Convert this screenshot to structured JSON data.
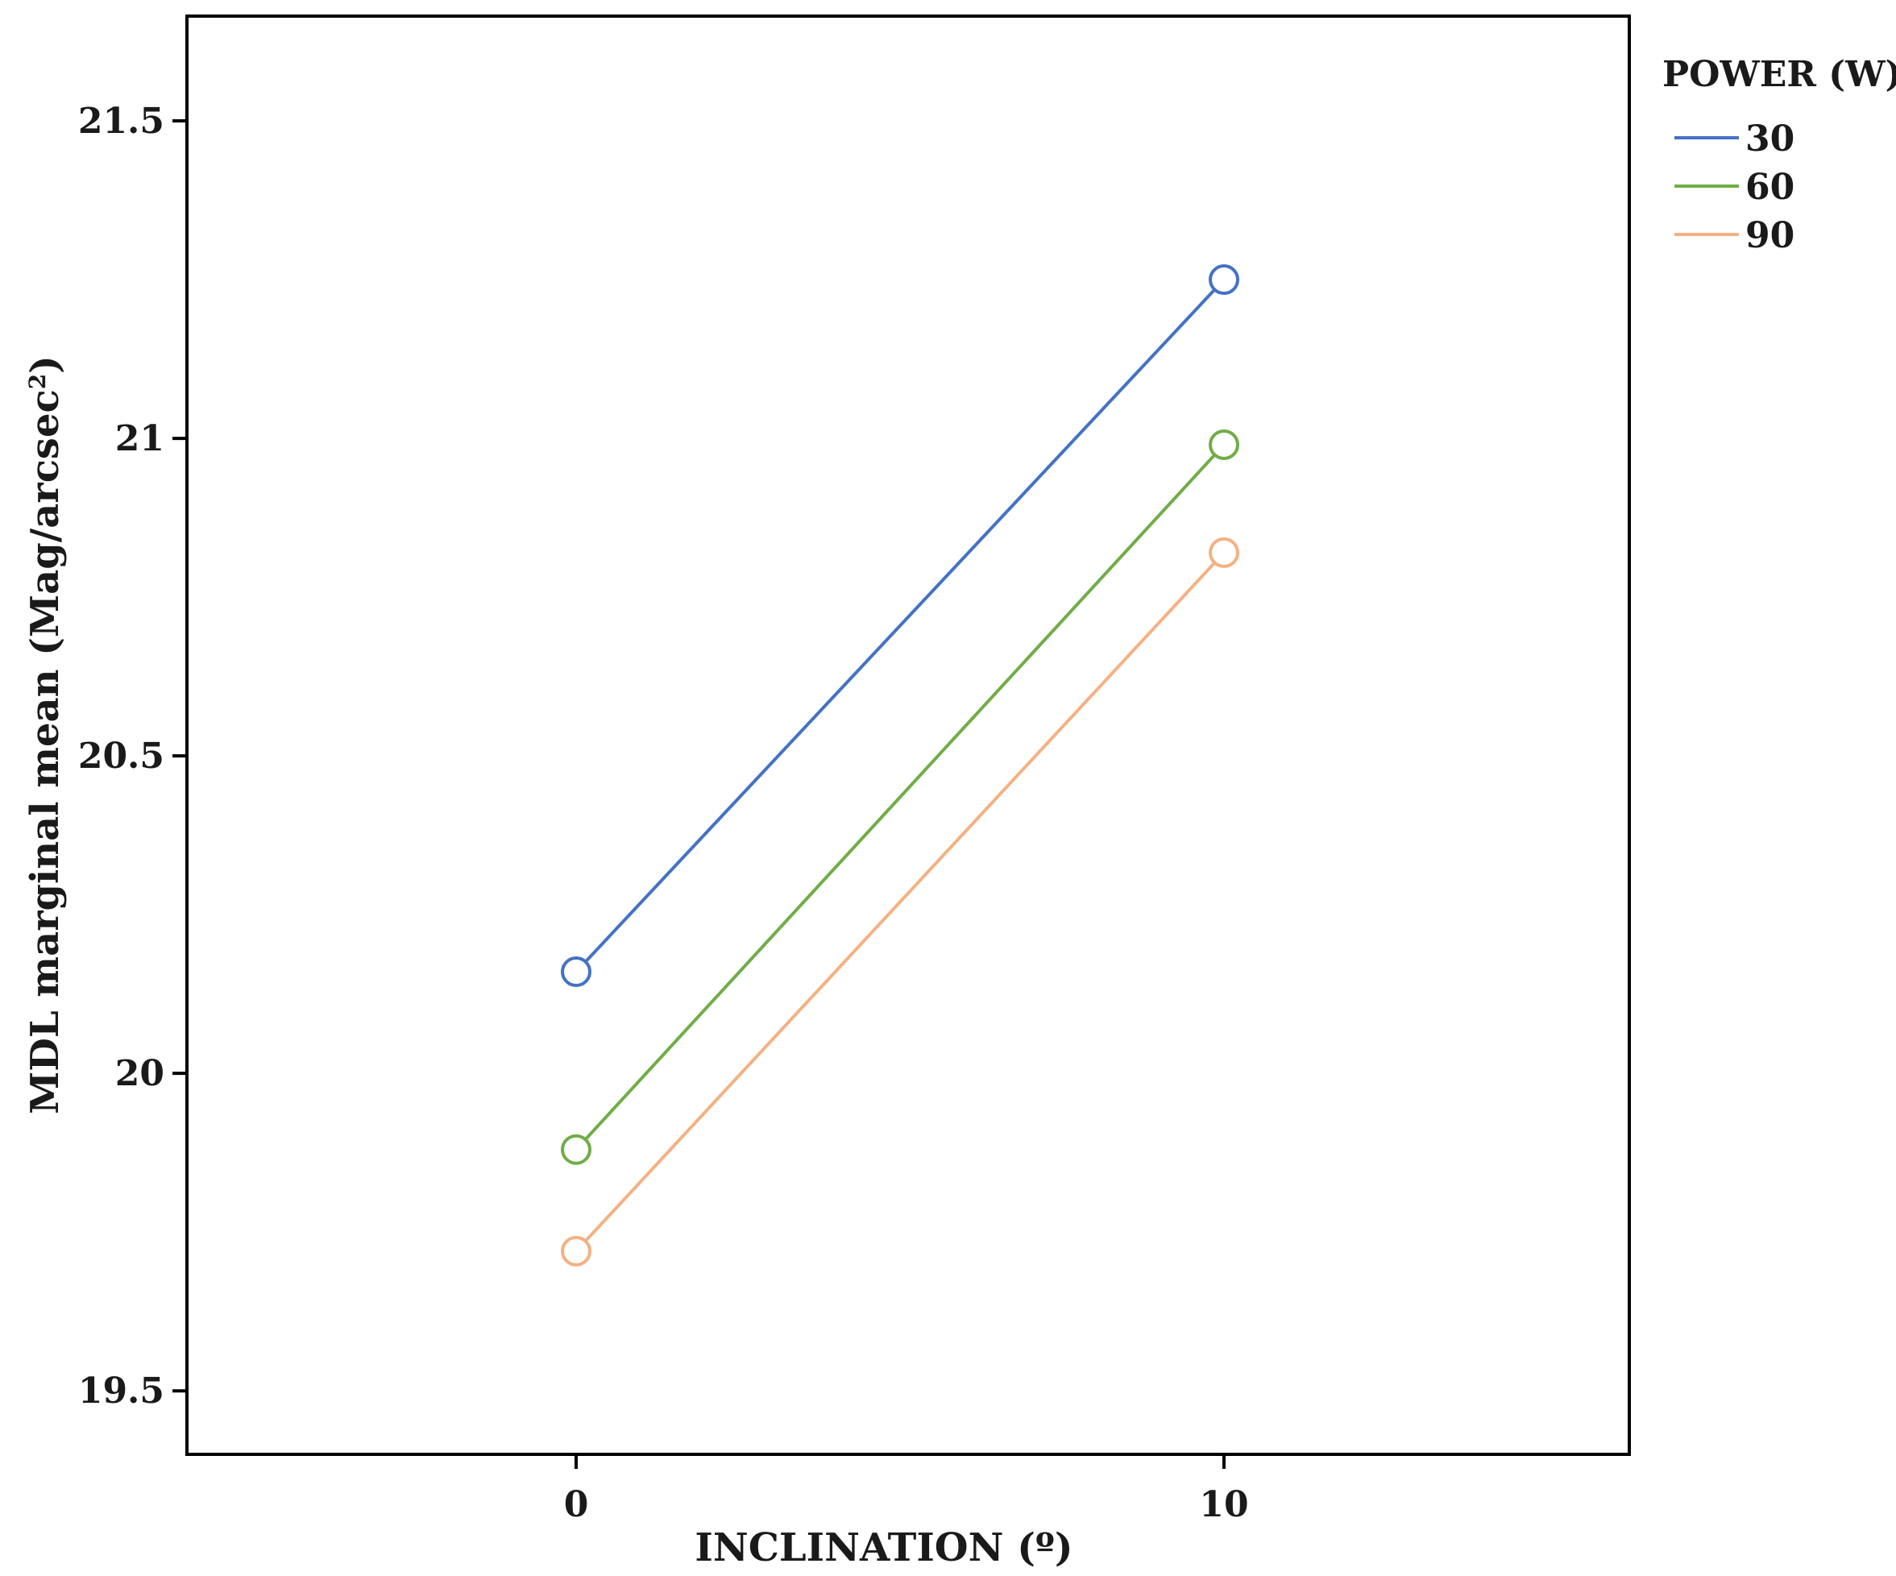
{
  "chart_data": {
    "type": "line",
    "xlabel": "INCLINATION (º)",
    "ylabel": "MDL marginal mean (Mag/arcsec",
    "ylabel_superscript": "2",
    "ylabel_suffix": ")",
    "categories": [
      "0",
      "10"
    ],
    "ylim": [
      19.4,
      21.665
    ],
    "yticks": [
      19.5,
      20,
      20.5,
      21,
      21.5
    ],
    "ytick_labels": [
      "19.5",
      "20",
      "20.5",
      "21",
      "21.5"
    ],
    "grid": false,
    "legend": {
      "title": "POWER (W)",
      "placement": "right"
    },
    "series": [
      {
        "name": "30",
        "values": [
          20.16,
          21.25
        ],
        "color": "#4472c4"
      },
      {
        "name": "60",
        "values": [
          19.88,
          20.99
        ],
        "color": "#70ad47"
      },
      {
        "name": "90",
        "values": [
          19.72,
          20.82
        ],
        "color": "#f4b183"
      }
    ]
  }
}
